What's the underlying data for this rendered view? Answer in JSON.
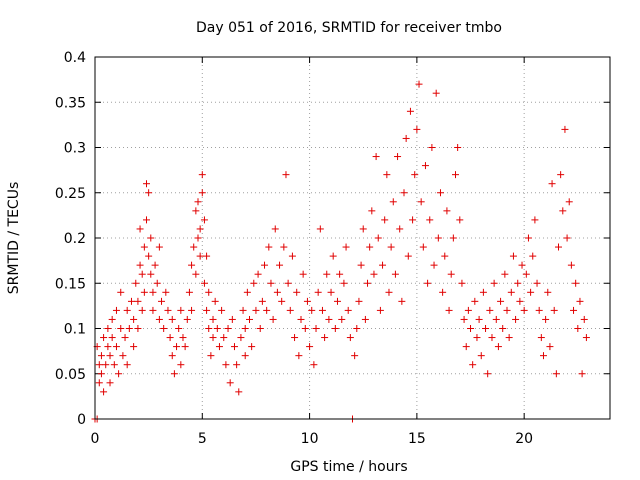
{
  "chart_data": {
    "type": "scatter",
    "title": "Day 051 of 2016, SRMTID for receiver tmbo",
    "xlabel": "GPS time / hours",
    "ylabel": "SRMTID / TECUs",
    "xlim": [
      0,
      24
    ],
    "ylim": [
      0,
      0.4
    ],
    "xticks": [
      0,
      5,
      10,
      15,
      20
    ],
    "xtick_labels": [
      "0",
      "5",
      "10",
      "15",
      "20"
    ],
    "yticks": [
      0,
      0.05,
      0.1,
      0.15,
      0.2,
      0.25,
      0.3,
      0.35,
      0.4
    ],
    "ytick_labels": [
      "0",
      "0.05",
      "0.1",
      "0.15",
      "0.2",
      "0.25",
      "0.3",
      "0.35",
      "0.4"
    ],
    "grid": true,
    "legend": "none",
    "marker": "plus",
    "color": "#e00000",
    "series": [
      {
        "name": "SRMTID",
        "points": [
          [
            0.0,
            0.0
          ],
          [
            0.1,
            0.0
          ],
          [
            0.1,
            0.08
          ],
          [
            0.2,
            0.06
          ],
          [
            0.2,
            0.04
          ],
          [
            0.3,
            0.07
          ],
          [
            0.3,
            0.05
          ],
          [
            0.4,
            0.09
          ],
          [
            0.4,
            0.03
          ],
          [
            0.5,
            0.06
          ],
          [
            0.6,
            0.08
          ],
          [
            0.6,
            0.1
          ],
          [
            0.7,
            0.04
          ],
          [
            0.7,
            0.07
          ],
          [
            0.8,
            0.11
          ],
          [
            0.8,
            0.09
          ],
          [
            0.9,
            0.06
          ],
          [
            1.0,
            0.12
          ],
          [
            1.0,
            0.08
          ],
          [
            1.1,
            0.05
          ],
          [
            1.2,
            0.1
          ],
          [
            1.2,
            0.14
          ],
          [
            1.3,
            0.07
          ],
          [
            1.4,
            0.09
          ],
          [
            1.5,
            0.12
          ],
          [
            1.5,
            0.06
          ],
          [
            1.6,
            0.1
          ],
          [
            1.7,
            0.13
          ],
          [
            1.8,
            0.08
          ],
          [
            1.8,
            0.11
          ],
          [
            1.9,
            0.15
          ],
          [
            2.0,
            0.1
          ],
          [
            2.0,
            0.13
          ],
          [
            2.1,
            0.17
          ],
          [
            2.1,
            0.21
          ],
          [
            2.2,
            0.12
          ],
          [
            2.2,
            0.16
          ],
          [
            2.3,
            0.19
          ],
          [
            2.3,
            0.14
          ],
          [
            2.4,
            0.26
          ],
          [
            2.4,
            0.22
          ],
          [
            2.5,
            0.18
          ],
          [
            2.5,
            0.25
          ],
          [
            2.6,
            0.16
          ],
          [
            2.6,
            0.2
          ],
          [
            2.7,
            0.14
          ],
          [
            2.7,
            0.12
          ],
          [
            2.8,
            0.17
          ],
          [
            2.9,
            0.15
          ],
          [
            3.0,
            0.11
          ],
          [
            3.0,
            0.19
          ],
          [
            3.1,
            0.13
          ],
          [
            3.2,
            0.1
          ],
          [
            3.3,
            0.14
          ],
          [
            3.4,
            0.12
          ],
          [
            3.5,
            0.09
          ],
          [
            3.6,
            0.11
          ],
          [
            3.6,
            0.07
          ],
          [
            3.7,
            0.05
          ],
          [
            3.8,
            0.08
          ],
          [
            3.9,
            0.1
          ],
          [
            4.0,
            0.06
          ],
          [
            4.0,
            0.12
          ],
          [
            4.1,
            0.09
          ],
          [
            4.2,
            0.08
          ],
          [
            4.3,
            0.11
          ],
          [
            4.4,
            0.14
          ],
          [
            4.5,
            0.17
          ],
          [
            4.5,
            0.12
          ],
          [
            4.6,
            0.19
          ],
          [
            4.7,
            0.23
          ],
          [
            4.7,
            0.16
          ],
          [
            4.8,
            0.2
          ],
          [
            4.8,
            0.24
          ],
          [
            4.9,
            0.18
          ],
          [
            4.9,
            0.21
          ],
          [
            5.0,
            0.27
          ],
          [
            5.0,
            0.25
          ],
          [
            5.1,
            0.22
          ],
          [
            5.1,
            0.15
          ],
          [
            5.2,
            0.18
          ],
          [
            5.2,
            0.12
          ],
          [
            5.3,
            0.1
          ],
          [
            5.3,
            0.14
          ],
          [
            5.4,
            0.07
          ],
          [
            5.5,
            0.11
          ],
          [
            5.5,
            0.09
          ],
          [
            5.6,
            0.13
          ],
          [
            5.7,
            0.1
          ],
          [
            5.8,
            0.08
          ],
          [
            5.9,
            0.12
          ],
          [
            6.0,
            0.09
          ],
          [
            6.1,
            0.06
          ],
          [
            6.2,
            0.1
          ],
          [
            6.3,
            0.04
          ],
          [
            6.4,
            0.11
          ],
          [
            6.5,
            0.08
          ],
          [
            6.6,
            0.06
          ],
          [
            6.7,
            0.03
          ],
          [
            6.8,
            0.09
          ],
          [
            6.9,
            0.12
          ],
          [
            7.0,
            0.07
          ],
          [
            7.0,
            0.1
          ],
          [
            7.1,
            0.14
          ],
          [
            7.2,
            0.11
          ],
          [
            7.3,
            0.08
          ],
          [
            7.4,
            0.15
          ],
          [
            7.5,
            0.12
          ],
          [
            7.6,
            0.16
          ],
          [
            7.7,
            0.1
          ],
          [
            7.8,
            0.13
          ],
          [
            7.9,
            0.17
          ],
          [
            8.0,
            0.12
          ],
          [
            8.1,
            0.19
          ],
          [
            8.2,
            0.15
          ],
          [
            8.3,
            0.11
          ],
          [
            8.4,
            0.21
          ],
          [
            8.5,
            0.14
          ],
          [
            8.6,
            0.17
          ],
          [
            8.7,
            0.13
          ],
          [
            8.8,
            0.19
          ],
          [
            8.9,
            0.27
          ],
          [
            9.0,
            0.15
          ],
          [
            9.1,
            0.12
          ],
          [
            9.2,
            0.18
          ],
          [
            9.3,
            0.09
          ],
          [
            9.4,
            0.14
          ],
          [
            9.5,
            0.07
          ],
          [
            9.6,
            0.11
          ],
          [
            9.7,
            0.16
          ],
          [
            9.8,
            0.1
          ],
          [
            9.9,
            0.13
          ],
          [
            10.0,
            0.08
          ],
          [
            10.1,
            0.12
          ],
          [
            10.2,
            0.06
          ],
          [
            10.3,
            0.1
          ],
          [
            10.4,
            0.14
          ],
          [
            10.5,
            0.21
          ],
          [
            10.6,
            0.12
          ],
          [
            10.7,
            0.09
          ],
          [
            10.8,
            0.16
          ],
          [
            10.9,
            0.11
          ],
          [
            11.0,
            0.14
          ],
          [
            11.1,
            0.18
          ],
          [
            11.2,
            0.1
          ],
          [
            11.3,
            0.13
          ],
          [
            11.4,
            0.16
          ],
          [
            11.5,
            0.11
          ],
          [
            11.6,
            0.15
          ],
          [
            11.7,
            0.19
          ],
          [
            11.8,
            0.12
          ],
          [
            11.9,
            0.09
          ],
          [
            12.0,
            0.0
          ],
          [
            12.1,
            0.07
          ],
          [
            12.2,
            0.1
          ],
          [
            12.3,
            0.13
          ],
          [
            12.4,
            0.17
          ],
          [
            12.5,
            0.21
          ],
          [
            12.6,
            0.11
          ],
          [
            12.7,
            0.15
          ],
          [
            12.8,
            0.19
          ],
          [
            12.9,
            0.23
          ],
          [
            13.0,
            0.16
          ],
          [
            13.1,
            0.29
          ],
          [
            13.2,
            0.2
          ],
          [
            13.3,
            0.12
          ],
          [
            13.4,
            0.17
          ],
          [
            13.5,
            0.22
          ],
          [
            13.6,
            0.27
          ],
          [
            13.7,
            0.14
          ],
          [
            13.8,
            0.19
          ],
          [
            13.9,
            0.24
          ],
          [
            14.0,
            0.16
          ],
          [
            14.1,
            0.29
          ],
          [
            14.2,
            0.21
          ],
          [
            14.3,
            0.13
          ],
          [
            14.4,
            0.25
          ],
          [
            14.5,
            0.31
          ],
          [
            14.6,
            0.18
          ],
          [
            14.7,
            0.34
          ],
          [
            14.8,
            0.22
          ],
          [
            14.9,
            0.27
          ],
          [
            15.0,
            0.32
          ],
          [
            15.1,
            0.37
          ],
          [
            15.2,
            0.24
          ],
          [
            15.3,
            0.19
          ],
          [
            15.4,
            0.28
          ],
          [
            15.5,
            0.15
          ],
          [
            15.6,
            0.22
          ],
          [
            15.7,
            0.3
          ],
          [
            15.8,
            0.17
          ],
          [
            15.9,
            0.36
          ],
          [
            16.0,
            0.2
          ],
          [
            16.1,
            0.25
          ],
          [
            16.2,
            0.14
          ],
          [
            16.3,
            0.18
          ],
          [
            16.4,
            0.23
          ],
          [
            16.5,
            0.12
          ],
          [
            16.6,
            0.16
          ],
          [
            16.7,
            0.2
          ],
          [
            16.8,
            0.27
          ],
          [
            16.9,
            0.3
          ],
          [
            17.0,
            0.22
          ],
          [
            17.1,
            0.15
          ],
          [
            17.2,
            0.11
          ],
          [
            17.3,
            0.08
          ],
          [
            17.4,
            0.12
          ],
          [
            17.5,
            0.1
          ],
          [
            17.6,
            0.06
          ],
          [
            17.7,
            0.13
          ],
          [
            17.8,
            0.09
          ],
          [
            17.9,
            0.11
          ],
          [
            18.0,
            0.07
          ],
          [
            18.1,
            0.14
          ],
          [
            18.2,
            0.1
          ],
          [
            18.3,
            0.05
          ],
          [
            18.4,
            0.12
          ],
          [
            18.5,
            0.09
          ],
          [
            18.6,
            0.15
          ],
          [
            18.7,
            0.11
          ],
          [
            18.8,
            0.08
          ],
          [
            18.9,
            0.13
          ],
          [
            19.0,
            0.1
          ],
          [
            19.1,
            0.16
          ],
          [
            19.2,
            0.12
          ],
          [
            19.3,
            0.09
          ],
          [
            19.4,
            0.14
          ],
          [
            19.5,
            0.18
          ],
          [
            19.6,
            0.11
          ],
          [
            19.7,
            0.15
          ],
          [
            19.8,
            0.13
          ],
          [
            19.9,
            0.17
          ],
          [
            20.0,
            0.12
          ],
          [
            20.1,
            0.16
          ],
          [
            20.2,
            0.2
          ],
          [
            20.3,
            0.14
          ],
          [
            20.4,
            0.18
          ],
          [
            20.5,
            0.22
          ],
          [
            20.6,
            0.15
          ],
          [
            20.7,
            0.12
          ],
          [
            20.8,
            0.09
          ],
          [
            20.9,
            0.07
          ],
          [
            21.0,
            0.11
          ],
          [
            21.1,
            0.14
          ],
          [
            21.2,
            0.08
          ],
          [
            21.3,
            0.26
          ],
          [
            21.4,
            0.12
          ],
          [
            21.5,
            0.05
          ],
          [
            21.6,
            0.19
          ],
          [
            21.7,
            0.27
          ],
          [
            21.8,
            0.23
          ],
          [
            21.9,
            0.32
          ],
          [
            22.0,
            0.2
          ],
          [
            22.1,
            0.24
          ],
          [
            22.2,
            0.17
          ],
          [
            22.3,
            0.12
          ],
          [
            22.4,
            0.15
          ],
          [
            22.5,
            0.1
          ],
          [
            22.6,
            0.13
          ],
          [
            22.7,
            0.05
          ],
          [
            22.8,
            0.11
          ],
          [
            22.9,
            0.09
          ]
        ]
      }
    ]
  }
}
